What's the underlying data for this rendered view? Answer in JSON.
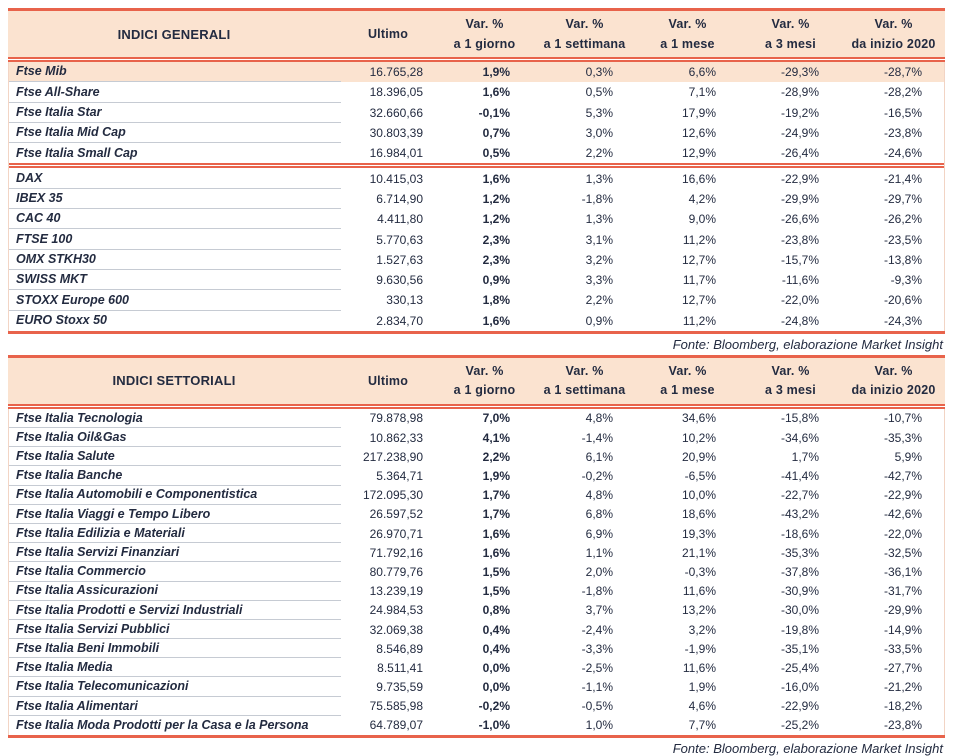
{
  "colors": {
    "accent_line": "#E8634B",
    "header_bg": "#FBE3D0",
    "highlight_row_bg": "#FBE3D0",
    "text": "#232B40",
    "row_separator": "#C6CBD3"
  },
  "tables": [
    {
      "title": "INDICI GENERALI",
      "ultimo_label": "Ultimo",
      "var_headers": [
        [
          "Var. %",
          "a 1 giorno"
        ],
        [
          "Var. %",
          "a 1 settimana"
        ],
        [
          "Var. %",
          "a 1 mese"
        ],
        [
          "Var. %",
          "a 3 mesi"
        ],
        [
          "Var. %",
          "da inizio 2020"
        ]
      ],
      "fonte": "Fonte: Bloomberg, elaborazione Market Insight",
      "sections": [
        [
          {
            "name": "Ftse Mib",
            "ultimo": "16.765,28",
            "var_1g": "1,9%",
            "var_1w": "0,3%",
            "var_1m": "6,6%",
            "var_3m": "-29,3%",
            "var_ytd": "-28,7%",
            "hl": true
          },
          {
            "name": "Ftse All-Share",
            "ultimo": "18.396,05",
            "var_1g": "1,6%",
            "var_1w": "0,5%",
            "var_1m": "7,1%",
            "var_3m": "-28,9%",
            "var_ytd": "-28,2%"
          },
          {
            "name": "Ftse Italia Star",
            "ultimo": "32.660,66",
            "var_1g": "-0,1%",
            "var_1w": "5,3%",
            "var_1m": "17,9%",
            "var_3m": "-19,2%",
            "var_ytd": "-16,5%"
          },
          {
            "name": "Ftse Italia Mid Cap",
            "ultimo": "30.803,39",
            "var_1g": "0,7%",
            "var_1w": "3,0%",
            "var_1m": "12,6%",
            "var_3m": "-24,9%",
            "var_ytd": "-23,8%"
          },
          {
            "name": "Ftse Italia Small Cap",
            "ultimo": "16.984,01",
            "var_1g": "0,5%",
            "var_1w": "2,2%",
            "var_1m": "12,9%",
            "var_3m": "-26,4%",
            "var_ytd": "-24,6%"
          }
        ],
        [
          {
            "name": "DAX",
            "ultimo": "10.415,03",
            "var_1g": "1,6%",
            "var_1w": "1,3%",
            "var_1m": "16,6%",
            "var_3m": "-22,9%",
            "var_ytd": "-21,4%"
          },
          {
            "name": "IBEX 35",
            "ultimo": "6.714,90",
            "var_1g": "1,2%",
            "var_1w": "-1,8%",
            "var_1m": "4,2%",
            "var_3m": "-29,9%",
            "var_ytd": "-29,7%"
          },
          {
            "name": "CAC 40",
            "ultimo": "4.411,80",
            "var_1g": "1,2%",
            "var_1w": "1,3%",
            "var_1m": "9,0%",
            "var_3m": "-26,6%",
            "var_ytd": "-26,2%"
          },
          {
            "name": "FTSE 100",
            "ultimo": "5.770,63",
            "var_1g": "2,3%",
            "var_1w": "3,1%",
            "var_1m": "11,2%",
            "var_3m": "-23,8%",
            "var_ytd": "-23,5%"
          },
          {
            "name": "OMX STKH30",
            "ultimo": "1.527,63",
            "var_1g": "2,3%",
            "var_1w": "3,2%",
            "var_1m": "12,7%",
            "var_3m": "-15,7%",
            "var_ytd": "-13,8%"
          },
          {
            "name": "SWISS MKT",
            "ultimo": "9.630,56",
            "var_1g": "0,9%",
            "var_1w": "3,3%",
            "var_1m": "11,7%",
            "var_3m": "-11,6%",
            "var_ytd": "-9,3%"
          },
          {
            "name": "STOXX Europe 600",
            "ultimo": "330,13",
            "var_1g": "1,8%",
            "var_1w": "2,2%",
            "var_1m": "12,7%",
            "var_3m": "-22,0%",
            "var_ytd": "-20,6%"
          },
          {
            "name": "EURO Stoxx 50",
            "ultimo": "2.834,70",
            "var_1g": "1,6%",
            "var_1w": "0,9%",
            "var_1m": "11,2%",
            "var_3m": "-24,8%",
            "var_ytd": "-24,3%"
          }
        ]
      ]
    },
    {
      "title": "INDICI SETTORIALI",
      "ultimo_label": "Ultimo",
      "var_headers": [
        [
          "Var. %",
          "a 1 giorno"
        ],
        [
          "Var. %",
          "a 1 settimana"
        ],
        [
          "Var. %",
          "a 1 mese"
        ],
        [
          "Var. %",
          "a 3 mesi"
        ],
        [
          "Var. %",
          "da inizio 2020"
        ]
      ],
      "fonte": "Fonte: Bloomberg, elaborazione Market Insight",
      "sections": [
        [
          {
            "name": "Ftse Italia Tecnologia",
            "ultimo": "79.878,98",
            "var_1g": "7,0%",
            "var_1w": "4,8%",
            "var_1m": "34,6%",
            "var_3m": "-15,8%",
            "var_ytd": "-10,7%"
          },
          {
            "name": "Ftse Italia Oil&Gas",
            "ultimo": "10.862,33",
            "var_1g": "4,1%",
            "var_1w": "-1,4%",
            "var_1m": "10,2%",
            "var_3m": "-34,6%",
            "var_ytd": "-35,3%"
          },
          {
            "name": "Ftse Italia Salute",
            "ultimo": "217.238,90",
            "var_1g": "2,2%",
            "var_1w": "6,1%",
            "var_1m": "20,9%",
            "var_3m": "1,7%",
            "var_ytd": "5,9%"
          },
          {
            "name": "Ftse Italia Banche",
            "ultimo": "5.364,71",
            "var_1g": "1,9%",
            "var_1w": "-0,2%",
            "var_1m": "-6,5%",
            "var_3m": "-41,4%",
            "var_ytd": "-42,7%"
          },
          {
            "name": "Ftse Italia Automobili e Componentistica",
            "ultimo": "172.095,30",
            "var_1g": "1,7%",
            "var_1w": "4,8%",
            "var_1m": "10,0%",
            "var_3m": "-22,7%",
            "var_ytd": "-22,9%"
          },
          {
            "name": "Ftse Italia Viaggi e Tempo Libero",
            "ultimo": "26.597,52",
            "var_1g": "1,7%",
            "var_1w": "6,8%",
            "var_1m": "18,6%",
            "var_3m": "-43,2%",
            "var_ytd": "-42,6%"
          },
          {
            "name": "Ftse Italia Edilizia e Materiali",
            "ultimo": "26.970,71",
            "var_1g": "1,6%",
            "var_1w": "6,9%",
            "var_1m": "19,3%",
            "var_3m": "-18,6%",
            "var_ytd": "-22,0%"
          },
          {
            "name": "Ftse Italia Servizi Finanziari",
            "ultimo": "71.792,16",
            "var_1g": "1,6%",
            "var_1w": "1,1%",
            "var_1m": "21,1%",
            "var_3m": "-35,3%",
            "var_ytd": "-32,5%"
          },
          {
            "name": "Ftse Italia Commercio",
            "ultimo": "80.779,76",
            "var_1g": "1,5%",
            "var_1w": "2,0%",
            "var_1m": "-0,3%",
            "var_3m": "-37,8%",
            "var_ytd": "-36,1%"
          },
          {
            "name": "Ftse Italia Assicurazioni",
            "ultimo": "13.239,19",
            "var_1g": "1,5%",
            "var_1w": "-1,8%",
            "var_1m": "11,6%",
            "var_3m": "-30,9%",
            "var_ytd": "-31,7%"
          },
          {
            "name": "Ftse Italia Prodotti e Servizi Industriali",
            "ultimo": "24.984,53",
            "var_1g": "0,8%",
            "var_1w": "3,7%",
            "var_1m": "13,2%",
            "var_3m": "-30,0%",
            "var_ytd": "-29,9%"
          },
          {
            "name": "Ftse Italia Servizi Pubblici",
            "ultimo": "32.069,38",
            "var_1g": "0,4%",
            "var_1w": "-2,4%",
            "var_1m": "3,2%",
            "var_3m": "-19,8%",
            "var_ytd": "-14,9%"
          },
          {
            "name": "Ftse Italia Beni Immobili",
            "ultimo": "8.546,89",
            "var_1g": "0,4%",
            "var_1w": "-3,3%",
            "var_1m": "-1,9%",
            "var_3m": "-35,1%",
            "var_ytd": "-33,5%"
          },
          {
            "name": "Ftse Italia Media",
            "ultimo": "8.511,41",
            "var_1g": "0,0%",
            "var_1w": "-2,5%",
            "var_1m": "11,6%",
            "var_3m": "-25,4%",
            "var_ytd": "-27,7%"
          },
          {
            "name": "Ftse Italia Telecomunicazioni",
            "ultimo": "9.735,59",
            "var_1g": "0,0%",
            "var_1w": "-1,1%",
            "var_1m": "1,9%",
            "var_3m": "-16,0%",
            "var_ytd": "-21,2%"
          },
          {
            "name": "Ftse Italia Alimentari",
            "ultimo": "75.585,98",
            "var_1g": "-0,2%",
            "var_1w": "-0,5%",
            "var_1m": "4,6%",
            "var_3m": "-22,9%",
            "var_ytd": "-18,2%"
          },
          {
            "name": "Ftse Italia Moda Prodotti per la Casa e la Persona",
            "ultimo": "64.789,07",
            "var_1g": "-1,0%",
            "var_1w": "1,0%",
            "var_1m": "7,7%",
            "var_3m": "-25,2%",
            "var_ytd": "-23,8%"
          }
        ]
      ]
    }
  ]
}
